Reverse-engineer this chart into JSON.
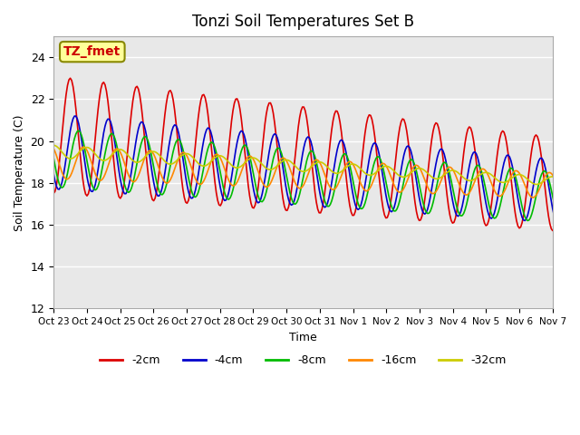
{
  "title": "Tonzi Soil Temperatures Set B",
  "xlabel": "Time",
  "ylabel": "Soil Temperature (C)",
  "ylim": [
    12,
    25
  ],
  "yticks": [
    12,
    14,
    16,
    18,
    20,
    22,
    24
  ],
  "xtick_labels": [
    "Oct 23",
    "Oct 24",
    "Oct 25",
    "Oct 26",
    "Oct 27",
    "Oct 28",
    "Oct 29",
    "Oct 30",
    "Oct 31",
    "Nov 1",
    "Nov 2",
    "Nov 3",
    "Nov 4",
    "Nov 5",
    "Nov 6",
    "Nov 7"
  ],
  "series_colors": [
    "#dd0000",
    "#0000cc",
    "#00bb00",
    "#ff8800",
    "#cccc00"
  ],
  "series_labels": [
    "-2cm",
    "-4cm",
    "-8cm",
    "-16cm",
    "-32cm"
  ],
  "annotation_text": "TZ_fmet",
  "annotation_box_color": "#ffff99",
  "annotation_border_color": "#888800",
  "background_color": "#e8e8e8",
  "grid_color": "white",
  "num_days": 16,
  "amplitude_start": [
    2.8,
    1.8,
    1.4,
    0.8,
    0.3
  ],
  "amplitude_end": [
    2.2,
    1.5,
    1.2,
    0.6,
    0.2
  ],
  "mean_start": [
    20.3,
    19.5,
    19.2,
    19.0,
    19.5
  ],
  "mean_end": [
    17.8,
    17.5,
    17.2,
    17.8,
    18.0
  ],
  "phase_shift": [
    0.0,
    0.15,
    0.25,
    0.4,
    0.5
  ]
}
